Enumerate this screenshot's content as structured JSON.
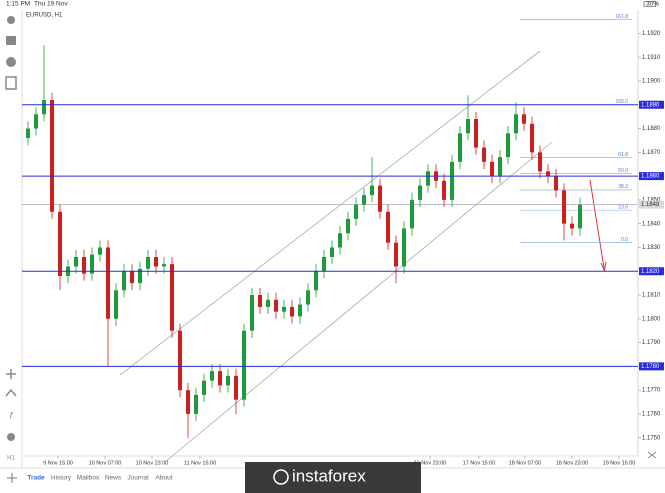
{
  "status_bar": {
    "time": "1:15 PM",
    "date": "Thu 19 Nov",
    "battery": "30%"
  },
  "chart_data": {
    "type": "candlestick",
    "title": "EURUSD, H1",
    "open": [
      1.1876,
      1.188,
      1.1886,
      1.1892,
      1.1845,
      1.1818,
      1.1822,
      1.1826,
      1.1819,
      1.1827,
      1.183,
      1.18,
      1.1812,
      1.182,
      1.1815,
      1.1821,
      1.1826,
      1.1822,
      1.1823,
      1.1795,
      1.177,
      1.176,
      1.1768,
      1.1774,
      1.1778,
      1.1772,
      1.1776,
      1.1766,
      1.1795,
      1.181,
      1.1805,
      1.1808,
      1.1803,
      1.1805,
      1.1801,
      1.1806,
      1.1812,
      1.182,
      1.1826,
      1.183,
      1.1836,
      1.1842,
      1.1848,
      1.1852,
      1.1856,
      1.1845,
      1.1832,
      1.1822,
      1.1838,
      1.185,
      1.1856,
      1.1862,
      1.1858,
      1.185,
      1.1866,
      1.1878,
      1.1884,
      1.1872,
      1.1866,
      1.186,
      1.1868,
      1.1878,
      1.1886,
      1.1882,
      1.187,
      1.1862,
      1.186,
      1.1854,
      1.184,
      1.1838
    ],
    "high": [
      1.1883,
      1.1889,
      1.1915,
      1.1895,
      1.1848,
      1.1825,
      1.1829,
      1.1829,
      1.183,
      1.1833,
      1.1833,
      1.1815,
      1.1823,
      1.1823,
      1.1824,
      1.1829,
      1.1829,
      1.1826,
      1.1826,
      1.1798,
      1.1773,
      1.1771,
      1.1777,
      1.1781,
      1.1781,
      1.1779,
      1.1779,
      1.1798,
      1.1813,
      1.1813,
      1.1811,
      1.1811,
      1.1808,
      1.1808,
      1.1809,
      1.1815,
      1.1823,
      1.1829,
      1.1833,
      1.1839,
      1.1845,
      1.1851,
      1.1855,
      1.1868,
      1.1859,
      1.1848,
      1.1835,
      1.1841,
      1.1853,
      1.1859,
      1.1865,
      1.1865,
      1.1861,
      1.1869,
      1.1881,
      1.1894,
      1.1887,
      1.1875,
      1.1869,
      1.1871,
      1.1881,
      1.1891,
      1.1889,
      1.1885,
      1.1873,
      1.1865,
      1.1863,
      1.1857,
      1.1843,
      1.1851
    ],
    "low": [
      1.1873,
      1.1877,
      1.1883,
      1.1842,
      1.1812,
      1.1815,
      1.1819,
      1.1816,
      1.1816,
      1.1824,
      1.178,
      1.1797,
      1.1809,
      1.1812,
      1.1812,
      1.1818,
      1.1819,
      1.1819,
      1.1792,
      1.1767,
      1.175,
      1.1757,
      1.1765,
      1.1771,
      1.1769,
      1.1769,
      1.176,
      1.1763,
      1.1792,
      1.1802,
      1.1802,
      1.18,
      1.18,
      1.1798,
      1.1798,
      1.1803,
      1.1809,
      1.1817,
      1.1823,
      1.1827,
      1.1833,
      1.1839,
      1.1845,
      1.1849,
      1.1842,
      1.1829,
      1.1815,
      1.1819,
      1.1835,
      1.1847,
      1.1853,
      1.1855,
      1.1847,
      1.1847,
      1.1863,
      1.1875,
      1.1869,
      1.1863,
      1.1857,
      1.1857,
      1.1865,
      1.1875,
      1.1879,
      1.1867,
      1.1859,
      1.1857,
      1.1851,
      1.1833,
      1.1835,
      1.1835
    ],
    "close": [
      1.188,
      1.1886,
      1.1892,
      1.1845,
      1.1818,
      1.1822,
      1.1826,
      1.1819,
      1.1827,
      1.183,
      1.18,
      1.1812,
      1.182,
      1.1815,
      1.1821,
      1.1826,
      1.1822,
      1.1823,
      1.1795,
      1.177,
      1.176,
      1.1768,
      1.1774,
      1.1778,
      1.1772,
      1.1776,
      1.1766,
      1.1795,
      1.181,
      1.1805,
      1.1808,
      1.1803,
      1.1805,
      1.1801,
      1.1806,
      1.1812,
      1.182,
      1.1826,
      1.183,
      1.1836,
      1.1842,
      1.1848,
      1.1852,
      1.1856,
      1.1845,
      1.1832,
      1.1822,
      1.1838,
      1.185,
      1.1856,
      1.1862,
      1.1858,
      1.185,
      1.1866,
      1.1878,
      1.1884,
      1.1872,
      1.1866,
      1.186,
      1.1868,
      1.1878,
      1.1886,
      1.1882,
      1.187,
      1.1862,
      1.186,
      1.1854,
      1.184,
      1.1838,
      1.1848
    ],
    "up_color": "#1e9b3c",
    "down_color": "#cc1f1f",
    "ylim": [
      1.1744,
      1.1929
    ],
    "yticks": [
      {
        "value": 1.192,
        "label": "1.1920"
      },
      {
        "value": 1.191,
        "label": "1.1910"
      },
      {
        "value": 1.19,
        "label": "1.1900"
      },
      {
        "value": 1.188,
        "label": "1.1880"
      },
      {
        "value": 1.187,
        "label": "1.1870"
      },
      {
        "value": 1.185,
        "label": "1.1850"
      },
      {
        "value": 1.184,
        "label": "1.1840"
      },
      {
        "value": 1.183,
        "label": "1.1830"
      },
      {
        "value": 1.181,
        "label": "1.1810"
      },
      {
        "value": 1.18,
        "label": "1.1800"
      },
      {
        "value": 1.179,
        "label": "1.1790"
      },
      {
        "value": 1.177,
        "label": "1.1770"
      },
      {
        "value": 1.176,
        "label": "1.1760"
      },
      {
        "value": 1.175,
        "label": "1.1750"
      }
    ],
    "levels": [
      {
        "value": 1.189,
        "label": "1.1890"
      },
      {
        "value": 1.186,
        "label": "1.1860"
      },
      {
        "value": 1.182,
        "label": "1.1820"
      },
      {
        "value": 1.178,
        "label": "1.1780"
      }
    ],
    "level_color": "#2a2ae0",
    "current_price": {
      "value": 1.1848,
      "label": "1.1848"
    },
    "fib_levels": [
      {
        "value": 1.19258,
        "label": "161.8"
      },
      {
        "value": 1.189,
        "label": "100.0"
      },
      {
        "value": 1.18678,
        "label": "61.8"
      },
      {
        "value": 1.1861,
        "label": "50.0"
      },
      {
        "value": 1.18542,
        "label": "38.2"
      },
      {
        "value": 1.18457,
        "label": "23.6"
      },
      {
        "value": 1.1832,
        "label": "0.0"
      }
    ],
    "x_labels": [
      "9 Nov 15:00",
      "10 Nov 07:00",
      "10 Nov 23:00",
      "11 Nov 15:00",
      "16 Nov 23:00",
      "17 Nov 15:00",
      "18 Nov 07:00",
      "18 Nov 23:00",
      "19 Nov 15:00"
    ]
  },
  "tabs": [
    "Trade",
    "History",
    "Mailbox",
    "News",
    "Journal",
    "About"
  ],
  "watermark": "instaforex"
}
